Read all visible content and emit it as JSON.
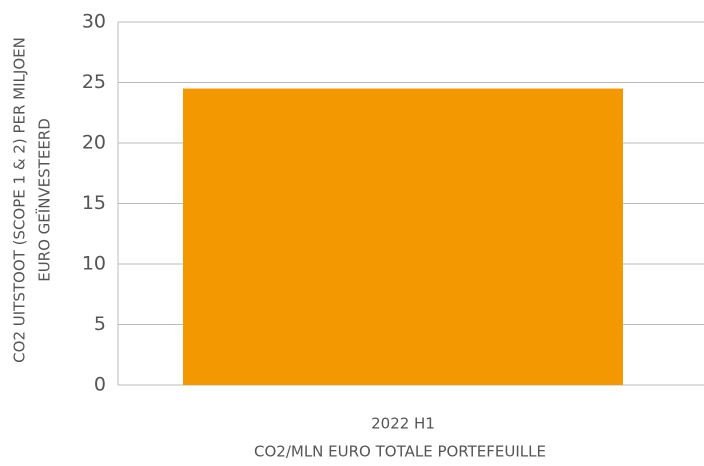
{
  "chart_data": {
    "type": "bar",
    "categories": [
      "2022 H1"
    ],
    "values": [
      24.5
    ],
    "color": "#f39800",
    "xlabel": "CO2/MLN EURO TOTALE PORTEFEUILLE",
    "ylabel": [
      "CO2 UITSTOOT (SCOPE 1 & 2) PER MILJOEN",
      "EURO GEÏNVESTEERD"
    ],
    "ylim": [
      0,
      30
    ],
    "yticks": [
      0,
      5,
      10,
      15,
      20,
      25,
      30
    ],
    "grid": true
  }
}
